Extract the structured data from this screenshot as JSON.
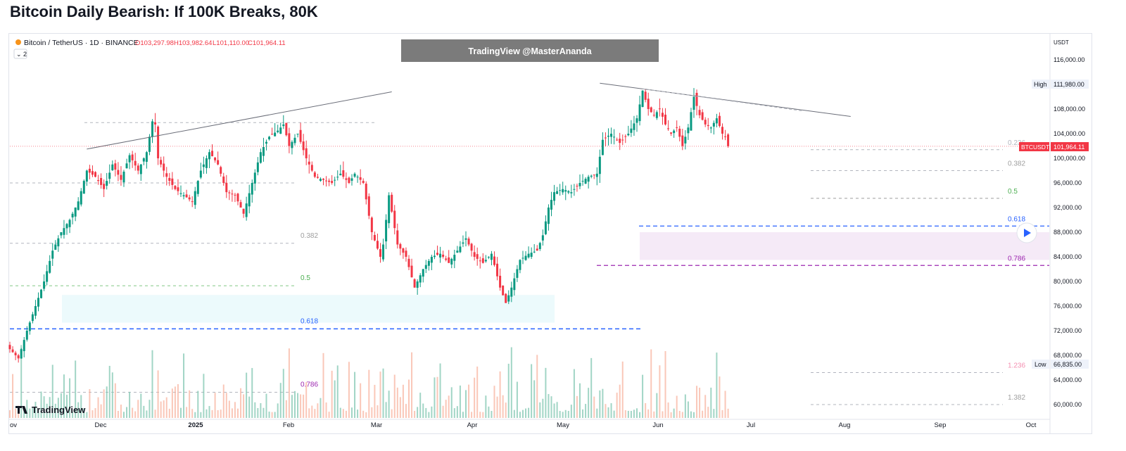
{
  "title": "Bitcoin Daily Bearish: If 100K Breaks, 80K",
  "header": {
    "symbol": "Bitcoin / TetherUS · 1D · BINANCE",
    "open": "O103,297.98",
    "high": "H103,982.64",
    "low": "L101,110.00",
    "close": "C101,964.11",
    "indicator_toggle": "⌄ 2"
  },
  "watermark": "TradingView @MasterAnanda",
  "logo_text": "TradingView",
  "colors": {
    "up": "#089981",
    "down": "#f23645",
    "last_price": "#f23645",
    "blue_level": "#2962ff",
    "purple_level": "#9c27b0",
    "cyan_zone": "#e0f7fa",
    "pink_zone": "#f3e5f5",
    "fib_label_gray": "#9e9e9e",
    "fib_label_green": "#4caf50"
  },
  "price_axis": {
    "unit": "USDT",
    "labels": [
      "116,000.00",
      "108,000.00",
      "104,000.00",
      "100,000.00",
      "96,000.00",
      "92,000.00",
      "88,000.00",
      "84,000.00",
      "80,000.00",
      "76,000.00",
      "72,000.00",
      "68,000.00",
      "64,000.00",
      "60,000.00"
    ],
    "high_tag": "High",
    "high_value": "111,980.00",
    "low_tag": "Low",
    "low_value": "66,835.00",
    "last_tag": "BTCUSDT",
    "last_value": "101,964.11"
  },
  "time_axis": {
    "labels": [
      "ov",
      "Dec",
      "2025",
      "Feb",
      "Mar",
      "Apr",
      "May",
      "Jun",
      "Jul",
      "Aug",
      "Sep",
      "Oct"
    ]
  },
  "fib_left": {
    "labels": [
      "0.382",
      "0.5",
      "0.618",
      "0.786"
    ]
  },
  "fib_right": {
    "labels": [
      "0.236",
      "0.382",
      "0.5",
      "0.618",
      "0.786",
      "1.236",
      "1.382"
    ]
  },
  "chart_data": {
    "type": "candlestick",
    "symbol": "BTCUSDT",
    "interval": "1D",
    "ylim": [
      58000,
      120000
    ],
    "y_ticks": [
      116000,
      108000,
      104000,
      100000,
      96000,
      92000,
      88000,
      84000,
      80000,
      76000,
      72000,
      68000,
      64000,
      60000
    ],
    "x_ticks": [
      "Nov",
      "Dec",
      "2025",
      "Feb",
      "Mar",
      "Apr",
      "May",
      "Jun",
      "Jul",
      "Aug",
      "Sep",
      "Oct"
    ],
    "last_price": 101964.11,
    "period_high": 111980,
    "period_low": 66835,
    "close_anchors": [
      [
        0,
        69000
      ],
      [
        3,
        67500
      ],
      [
        6,
        72000
      ],
      [
        9,
        76000
      ],
      [
        12,
        80000
      ],
      [
        15,
        85000
      ],
      [
        18,
        88000
      ],
      [
        21,
        90000
      ],
      [
        24,
        93000
      ],
      [
        27,
        98000
      ],
      [
        30,
        97000
      ],
      [
        33,
        95000
      ],
      [
        36,
        99000
      ],
      [
        39,
        96500
      ],
      [
        42,
        100500
      ],
      [
        45,
        98000
      ],
      [
        48,
        101000
      ],
      [
        50,
        106000
      ],
      [
        51,
        105500
      ],
      [
        52,
        100000
      ],
      [
        55,
        97000
      ],
      [
        58,
        95000
      ],
      [
        61,
        94000
      ],
      [
        64,
        93000
      ],
      [
        67,
        98000
      ],
      [
        70,
        101000
      ],
      [
        73,
        99000
      ],
      [
        76,
        94500
      ],
      [
        79,
        94000
      ],
      [
        82,
        91000
      ],
      [
        85,
        96000
      ],
      [
        88,
        101000
      ],
      [
        91,
        103500
      ],
      [
        94,
        104500
      ],
      [
        96,
        105500
      ],
      [
        98,
        102000
      ],
      [
        101,
        104000
      ],
      [
        104,
        100000
      ],
      [
        107,
        97000
      ],
      [
        110,
        96500
      ],
      [
        113,
        96000
      ],
      [
        116,
        97500
      ],
      [
        119,
        96000
      ],
      [
        121,
        97500
      ],
      [
        124,
        96000
      ],
      [
        127,
        88000
      ],
      [
        130,
        84000
      ],
      [
        131,
        86000
      ],
      [
        133,
        94000
      ],
      [
        136,
        86000
      ],
      [
        139,
        84000
      ],
      [
        142,
        79000
      ],
      [
        145,
        82000
      ],
      [
        148,
        84000
      ],
      [
        151,
        84500
      ],
      [
        154,
        83000
      ],
      [
        157,
        85000
      ],
      [
        160,
        87000
      ],
      [
        163,
        84000
      ],
      [
        166,
        83000
      ],
      [
        169,
        84500
      ],
      [
        172,
        79000
      ],
      [
        174,
        76500
      ],
      [
        176,
        79000
      ],
      [
        179,
        83500
      ],
      [
        182,
        84500
      ],
      [
        185,
        85000
      ],
      [
        187,
        87500
      ],
      [
        189,
        92000
      ],
      [
        191,
        94500
      ],
      [
        194,
        95000
      ],
      [
        197,
        94500
      ],
      [
        200,
        96000
      ],
      [
        203,
        97000
      ],
      [
        206,
        97500
      ],
      [
        208,
        103000
      ],
      [
        211,
        104000
      ],
      [
        214,
        102500
      ],
      [
        217,
        104000
      ],
      [
        220,
        106500
      ],
      [
        222,
        111000
      ],
      [
        224,
        108000
      ],
      [
        226,
        107000
      ],
      [
        228,
        108000
      ],
      [
        230,
        105500
      ],
      [
        232,
        104000
      ],
      [
        234,
        105000
      ],
      [
        236,
        102000
      ],
      [
        238,
        105000
      ],
      [
        240,
        110000
      ],
      [
        242,
        107000
      ],
      [
        244,
        105500
      ],
      [
        246,
        105000
      ],
      [
        248,
        106500
      ],
      [
        250,
        104000
      ],
      [
        251,
        103500
      ],
      [
        252,
        101964
      ]
    ],
    "volume_note": "volume bars at bottom, colored by candle direction",
    "trendlines": [
      {
        "from": [
          27,
          101500
        ],
        "to": [
          134,
          110800
        ]
      },
      {
        "from": [
          207,
          112200
        ],
        "to": [
          295,
          106800
        ]
      },
      {
        "from": [
          222,
          111300
        ],
        "to": [
          278,
          107700
        ],
        "style": "dashed"
      }
    ],
    "left_fib": {
      "levels": [
        {
          "ratio": "0.382",
          "price": 86200
        },
        {
          "ratio": "0.5",
          "price": 79300
        },
        {
          "ratio": "0.618",
          "price": 72300
        },
        {
          "ratio": "0.786",
          "price": 62000
        }
      ],
      "top_level_price": 105800,
      "second_level_price": 96000,
      "zone": [
        73300,
        77800
      ]
    },
    "right_fib": {
      "levels": [
        {
          "ratio": "0.236",
          "price": 101400
        },
        {
          "ratio": "0.382",
          "price": 98000
        },
        {
          "ratio": "0.5",
          "price": 93500
        },
        {
          "ratio": "0.618",
          "price": 89000
        },
        {
          "ratio": "0.786",
          "price": 82600
        },
        {
          "ratio": "1.236",
          "price": 65200
        },
        {
          "ratio": "1.382",
          "price": 60000
        }
      ],
      "zone": [
        83500,
        88000
      ]
    }
  }
}
